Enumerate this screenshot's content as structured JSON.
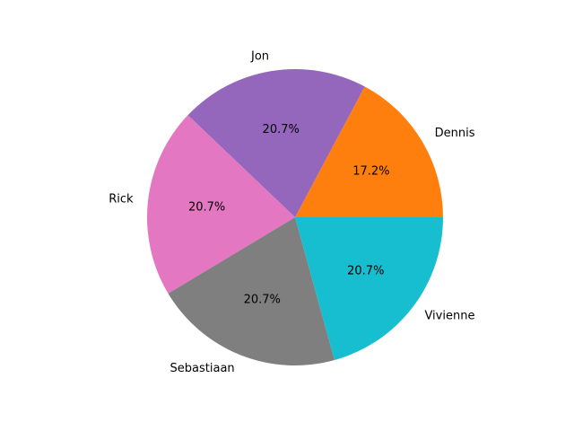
{
  "chart_data": {
    "type": "pie",
    "title": "",
    "start_angle_deg": 0,
    "direction": "counterclockwise",
    "slices": [
      {
        "label": "Dennis",
        "value": 17.2,
        "pct_label": "17.2%",
        "color": "#ff7f0e"
      },
      {
        "label": "Jon",
        "value": 20.7,
        "pct_label": "20.7%",
        "color": "#9467bd"
      },
      {
        "label": "Rick",
        "value": 20.7,
        "pct_label": "20.7%",
        "color": "#e377c2"
      },
      {
        "label": "Sebastiaan",
        "value": 20.7,
        "pct_label": "20.7%",
        "color": "#7f7f7f"
      },
      {
        "label": "Vivienne",
        "value": 20.7,
        "pct_label": "20.7%",
        "color": "#17becf"
      }
    ]
  }
}
